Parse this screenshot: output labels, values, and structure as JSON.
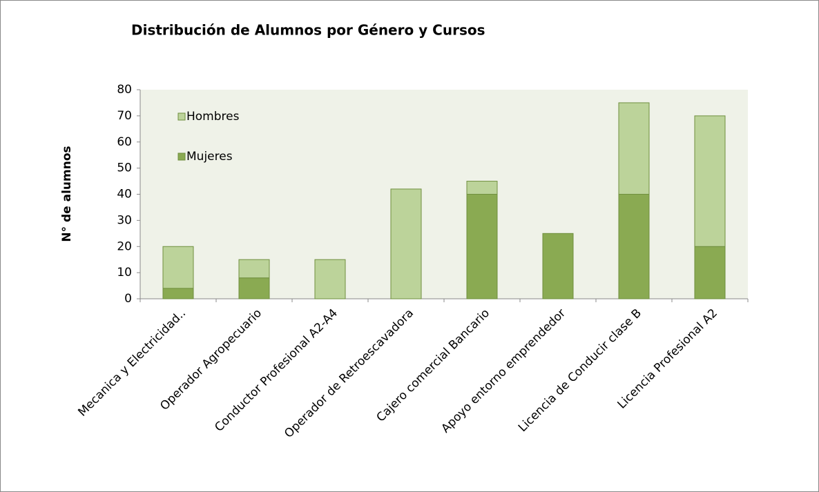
{
  "chart_data": {
    "type": "stacked_bar",
    "title": "Distribución de Alumnos por Género y Cursos",
    "y_label": "N° de alumnos",
    "categories": [
      "Mecanica y Electricidad..",
      "Operador Agropecuario",
      "Conductor Profesional A2-A4",
      "Operador de Retroescavadora",
      "Cajero comercial Bancario",
      "Apoyo entorno emprendedor",
      "Licencia de Conducir clase B",
      "Licencia Profesional A2"
    ],
    "series": [
      {
        "name": "Mujeres",
        "color": "#8aaa52",
        "values": [
          4,
          8,
          0,
          0,
          40,
          25,
          40,
          20
        ]
      },
      {
        "name": "Hombres",
        "color": "#bcd39a",
        "values": [
          16,
          7,
          15,
          42,
          5,
          0,
          35,
          50
        ]
      }
    ],
    "ylim": [
      0,
      80
    ],
    "yticks": [
      0,
      10,
      20,
      30,
      40,
      50,
      60,
      70,
      80
    ],
    "legend": "upper left"
  }
}
